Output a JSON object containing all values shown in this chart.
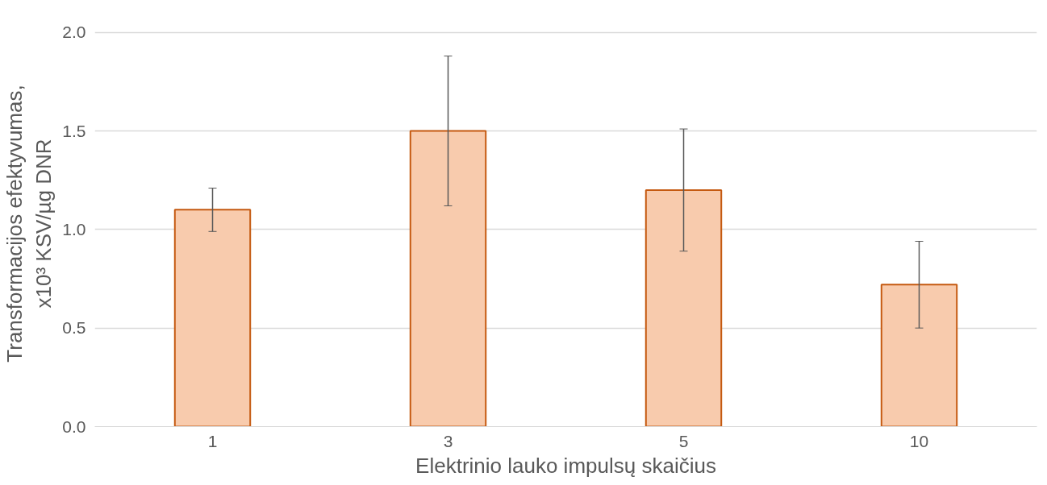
{
  "chart_data": {
    "type": "bar",
    "categories": [
      "1",
      "3",
      "5",
      "10"
    ],
    "xlabel": "Elektrinio lauko impulsų skaičius",
    "ylabel": "Transformacijos efektyvumas,\nx10³ KSV/µg DNR",
    "series": [
      {
        "color": "#f8cbad",
        "values": [
          1.1,
          1.5,
          1.2,
          0.72
        ],
        "errors": [
          0.11,
          0.38,
          0.31,
          0.22
        ]
      }
    ],
    "ylim": [
      0,
      2.0
    ],
    "yticks": [
      {
        "value": 0,
        "label": "0.0"
      },
      {
        "value": 0.5,
        "label": "0.5"
      },
      {
        "value": 1.0,
        "label": "1.0"
      },
      {
        "value": 1.5,
        "label": "1.5"
      },
      {
        "value": 2.0,
        "label": "2.0"
      }
    ],
    "grid": "y"
  }
}
